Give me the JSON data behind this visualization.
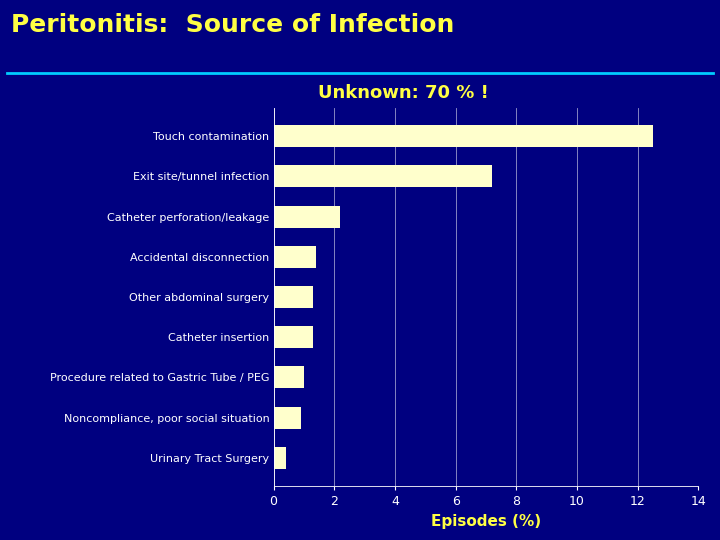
{
  "title": "Peritonitis:  Source of Infection",
  "subtitle": "Unknown: 70 % !",
  "xlabel": "Episodes (%)",
  "bg_color": "#000080",
  "title_color": "#FFFF44",
  "subtitle_color": "#FFFF44",
  "bar_color": "#FFFFCC",
  "grid_color": "#FFFFFF",
  "tick_color": "#FFFFFF",
  "label_color": "#FFFFFF",
  "xlabel_color": "#FFFF44",
  "categories": [
    "Touch contamination",
    "Exit site/tunnel infection",
    "Catheter perforation/leakage",
    "Accidental disconnection",
    "Other abdominal surgery",
    "Catheter insertion",
    "Procedure related to Gastric Tube / PEG",
    "Noncompliance, poor social situation",
    "Urinary Tract Surgery"
  ],
  "values": [
    12.5,
    7.2,
    2.2,
    1.4,
    1.3,
    1.3,
    1.0,
    0.9,
    0.4
  ],
  "xlim": [
    0,
    14
  ],
  "xticks": [
    0,
    2,
    4,
    6,
    8,
    10,
    12,
    14
  ],
  "title_line_color": "#00CCFF",
  "title_fontsize": 18,
  "subtitle_fontsize": 13,
  "label_fontsize": 8,
  "tick_fontsize": 9,
  "xlabel_fontsize": 11
}
